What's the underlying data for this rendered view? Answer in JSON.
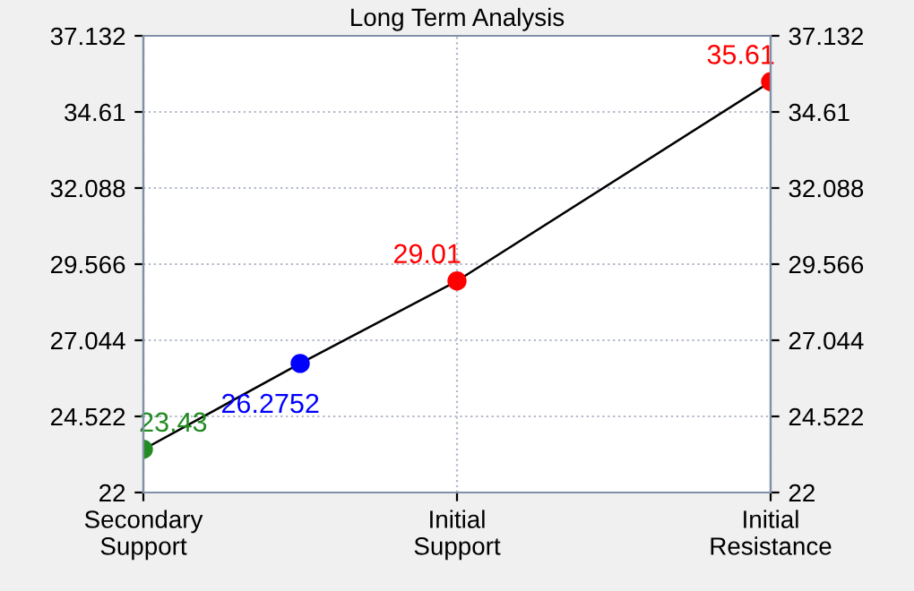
{
  "chart_data": {
    "type": "line",
    "title": "Long Term Analysis",
    "categories": [
      "Secondary\nSupport",
      null,
      "Initial\nSupport",
      null,
      "Initial\nResistance"
    ],
    "series": [
      {
        "color": "#000000",
        "colors": [
          "#228b22",
          "#0000ff",
          "#ff0000",
          null,
          "#ff0000"
        ],
        "values": [
          23.43,
          26.2752,
          29.01,
          null,
          35.61
        ]
      }
    ],
    "value_labels": [
      "23.43",
      "26.2752",
      "29.01",
      null,
      "35.61"
    ],
    "marker": "circle",
    "line_style": "solid",
    "ylim": [
      22,
      37.132
    ],
    "yticks": [
      22,
      24.522,
      27.044,
      29.566,
      32.088,
      34.61,
      37.132
    ],
    "y2lim": [
      22,
      37.132
    ],
    "y2ticks": [
      22,
      24.522,
      27.044,
      29.566,
      32.088,
      34.61,
      37.132
    ],
    "grid": true,
    "legend": false
  }
}
